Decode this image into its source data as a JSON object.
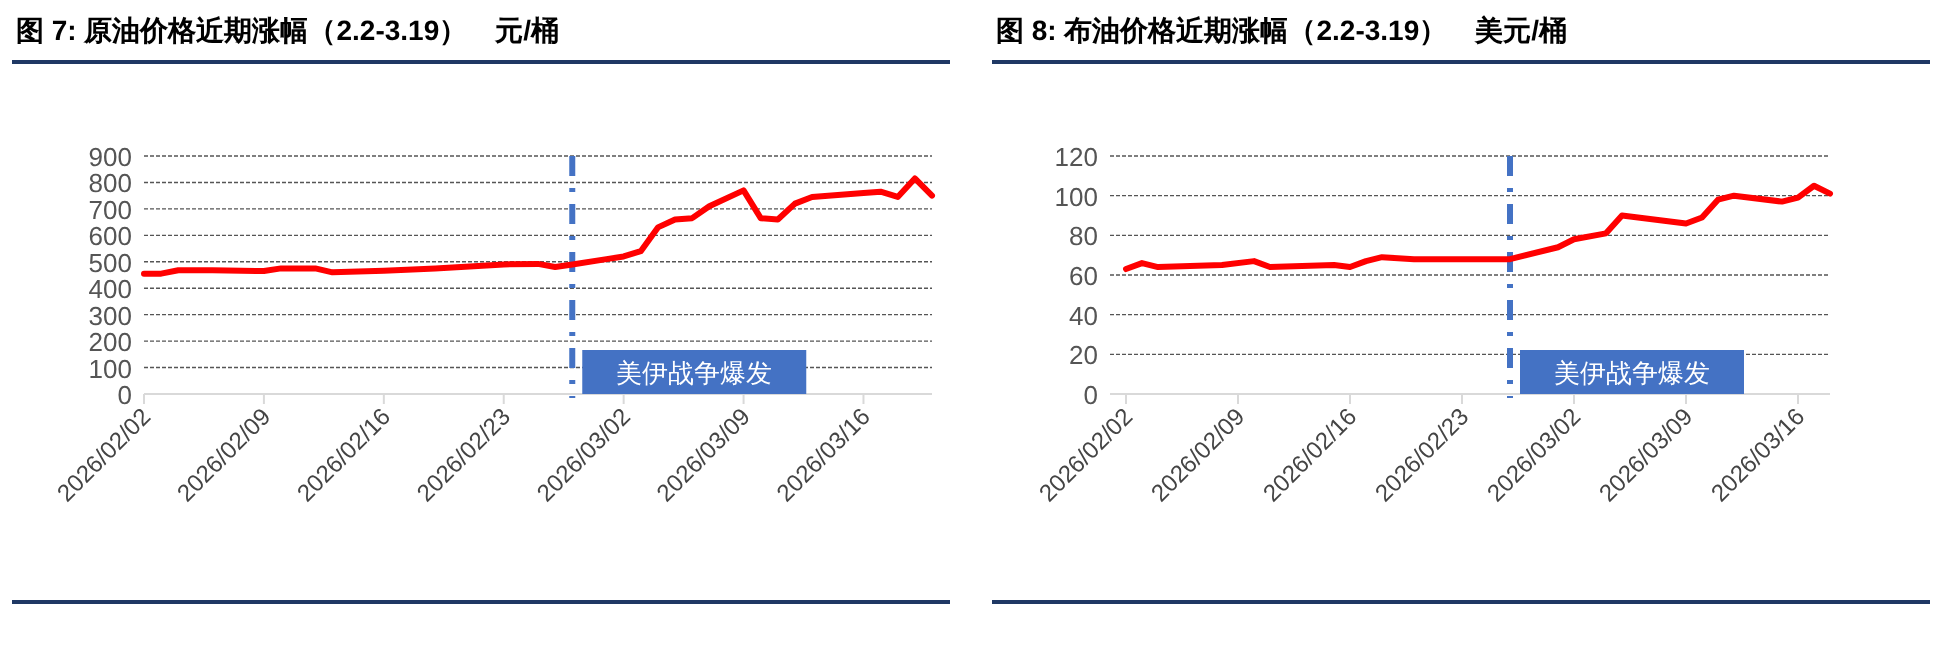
{
  "chart_data": [
    {
      "type": "line",
      "title": "图 7: 原油价格近期涨幅（2.2-3.19）　元/桶",
      "x": [
        "2026-02-02",
        "2026-02-03",
        "2026-02-04",
        "2026-02-06",
        "2026-02-09",
        "2026-02-10",
        "2026-02-12",
        "2026-02-13",
        "2026-02-16",
        "2026-02-19",
        "2026-02-23",
        "2026-02-25",
        "2026-02-26",
        "2026-02-27",
        "2026-03-01",
        "2026-03-02",
        "2026-03-03",
        "2026-03-04",
        "2026-03-05",
        "2026-03-06",
        "2026-03-07",
        "2026-03-09",
        "2026-03-10",
        "2026-03-11",
        "2026-03-12",
        "2026-03-13",
        "2026-03-16",
        "2026-03-17",
        "2026-03-18",
        "2026-03-19",
        "2026-03-20"
      ],
      "series": [
        {
          "color": "#ff0000",
          "values": [
            455,
            455,
            468,
            468,
            465,
            475,
            475,
            460,
            466,
            475,
            490,
            492,
            480,
            490,
            510,
            520,
            540,
            630,
            660,
            665,
            710,
            770,
            665,
            660,
            720,
            745,
            760,
            765,
            745,
            815,
            750
          ]
        }
      ],
      "xlim": [
        "2026-02-02",
        "2026-03-20"
      ],
      "xticks": [
        {
          "value": "2026-02-02",
          "label": "2026/02/02"
        },
        {
          "value": "2026-02-09",
          "label": "2026/02/09"
        },
        {
          "value": "2026-02-16",
          "label": "2026/02/16"
        },
        {
          "value": "2026-02-23",
          "label": "2026/02/23"
        },
        {
          "value": "2026-03-02",
          "label": "2026/03/02"
        },
        {
          "value": "2026-03-09",
          "label": "2026/03/09"
        },
        {
          "value": "2026-03-16",
          "label": "2026/03/16"
        }
      ],
      "ylim": [
        0,
        900
      ],
      "yticks": [
        0,
        100,
        200,
        300,
        400,
        500,
        600,
        700,
        800,
        900
      ],
      "grid": "y",
      "ref_lines": [
        {
          "axis": "x",
          "value": "2026-02-27",
          "label": "美伊战争爆发",
          "color": "#4472c4",
          "line_style": "dashed"
        }
      ]
    },
    {
      "type": "line",
      "title": "图 8: 布油价格近期涨幅（2.2-3.19）　美元/桶",
      "x": [
        "2026-02-02",
        "2026-02-03",
        "2026-02-04",
        "2026-02-08",
        "2026-02-10",
        "2026-02-11",
        "2026-02-15",
        "2026-02-16",
        "2026-02-17",
        "2026-02-18",
        "2026-02-20",
        "2026-02-26",
        "2026-03-01",
        "2026-03-02",
        "2026-03-04",
        "2026-03-05",
        "2026-03-09",
        "2026-03-10",
        "2026-03-11",
        "2026-03-12",
        "2026-03-15",
        "2026-03-16",
        "2026-03-17",
        "2026-03-18"
      ],
      "series": [
        {
          "color": "#ff0000",
          "values": [
            63,
            66,
            64,
            65,
            67,
            64,
            65,
            64,
            67,
            69,
            68,
            68,
            74,
            78,
            81,
            90,
            86,
            89,
            98,
            100,
            97,
            99,
            105,
            101
          ]
        }
      ],
      "xlim": [
        "2026-02-01",
        "2026-03-18"
      ],
      "xticks": [
        {
          "value": "2026-02-02",
          "label": "2026/02/02"
        },
        {
          "value": "2026-02-09",
          "label": "2026/02/09"
        },
        {
          "value": "2026-02-16",
          "label": "2026/02/16"
        },
        {
          "value": "2026-02-23",
          "label": "2026/02/23"
        },
        {
          "value": "2026-03-02",
          "label": "2026/03/02"
        },
        {
          "value": "2026-03-09",
          "label": "2026/03/09"
        },
        {
          "value": "2026-03-16",
          "label": "2026/03/16"
        }
      ],
      "ylim": [
        0,
        120
      ],
      "yticks": [
        0,
        20,
        40,
        60,
        80,
        100,
        120
      ],
      "grid": "y",
      "ref_lines": [
        {
          "axis": "x",
          "value": "2026-02-26",
          "label": "美伊战争爆发",
          "color": "#4472c4",
          "line_style": "dashed"
        }
      ]
    }
  ]
}
